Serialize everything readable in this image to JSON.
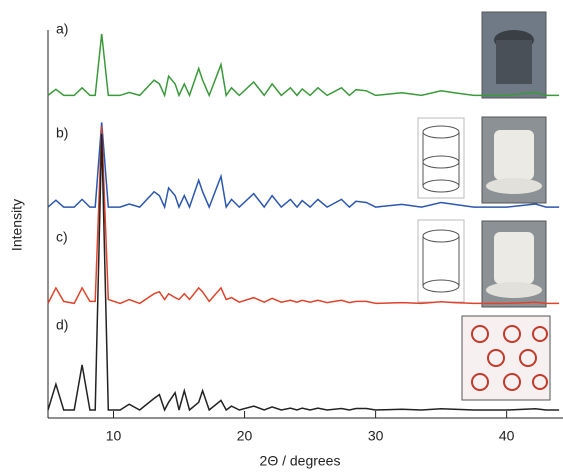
{
  "chart_data": {
    "type": "line",
    "xlabel": "2Θ / degrees",
    "ylabel": "Intensity",
    "xlim": [
      5,
      44.3
    ],
    "xticks": [
      10,
      20,
      30,
      40
    ],
    "ylim": [
      0,
      100
    ],
    "x": [
      5,
      5.6,
      6.2,
      7,
      7.6,
      8.2,
      8.6,
      9.1,
      9.6,
      10.5,
      11.2,
      12,
      13.1,
      13.5,
      13.9,
      14.2,
      14.7,
      15.0,
      15.4,
      15.8,
      16.5,
      16.8,
      17.3,
      18.2,
      18.6,
      19.0,
      19.6,
      20.7,
      21.5,
      22.1,
      22.8,
      23.5,
      24.0,
      24.4,
      25.0,
      25.6,
      26.3,
      27.4,
      28.0,
      28.5,
      29.3,
      30.0,
      32.0,
      33.5,
      35.0,
      36.0,
      37.5,
      40.0,
      42.2,
      43.0,
      44.0
    ],
    "series": [
      {
        "name": "a)",
        "color": "#3a9a3a",
        "values": [
          83,
          84.6,
          83,
          83,
          85,
          83,
          83,
          99,
          83,
          83,
          83.8,
          83,
          87,
          86,
          83,
          88,
          86,
          83,
          86,
          83,
          90,
          87,
          83,
          91,
          83,
          85,
          83,
          86.5,
          83,
          86,
          83,
          85,
          83,
          84.7,
          83,
          85,
          83,
          85,
          83,
          84.5,
          84.2,
          83,
          83.7,
          83,
          84.2,
          83.7,
          83,
          83,
          83.8,
          83,
          83
        ]
      },
      {
        "name": "b)",
        "color": "#2b57b0",
        "values": [
          54,
          55.8,
          54,
          54,
          56,
          54,
          54,
          76,
          54,
          54,
          54.8,
          54,
          58,
          57,
          54,
          59,
          57,
          54,
          57,
          54,
          61,
          58,
          54,
          62,
          54,
          56,
          54,
          57.5,
          54,
          57,
          54,
          56,
          54,
          55.7,
          54,
          56,
          54,
          56,
          54,
          55.5,
          55.2,
          54,
          54.7,
          54,
          55.2,
          54.7,
          54,
          54,
          54.8,
          54,
          54
        ]
      },
      {
        "name": "c)",
        "color": "#e0432b",
        "values": [
          29,
          33,
          29.5,
          29,
          33,
          29.5,
          29.5,
          75,
          30,
          29,
          30,
          29,
          31.5,
          32,
          30,
          31.5,
          30.5,
          30,
          31.5,
          30,
          33,
          32,
          29.5,
          33,
          30,
          30.5,
          29.3,
          30.5,
          29.3,
          30.3,
          29.3,
          29.8,
          29.3,
          29.8,
          29.3,
          29.8,
          29.2,
          29.8,
          29.2,
          29.5,
          29.5,
          29,
          29.2,
          29,
          29.4,
          29.2,
          29,
          29,
          29.3,
          29,
          29
        ]
      },
      {
        "name": "d)",
        "color": "#222222",
        "values": [
          1.3,
          8,
          1.3,
          1.3,
          13,
          1.3,
          1.3,
          73,
          1.3,
          1.3,
          2.8,
          1.3,
          4.3,
          5.3,
          1.3,
          3.3,
          5.8,
          1.3,
          6.3,
          1.3,
          3.3,
          6.3,
          1.3,
          3.8,
          1.3,
          2.3,
          1.3,
          2.3,
          1.3,
          2.1,
          1.3,
          1.8,
          1.3,
          1.8,
          1.3,
          1.8,
          1.3,
          1.7,
          1.3,
          1.7,
          1.7,
          1.3,
          1.5,
          1.3,
          1.6,
          1.5,
          1.3,
          1.3,
          1.6,
          1.3,
          1.3
        ]
      }
    ]
  }
}
